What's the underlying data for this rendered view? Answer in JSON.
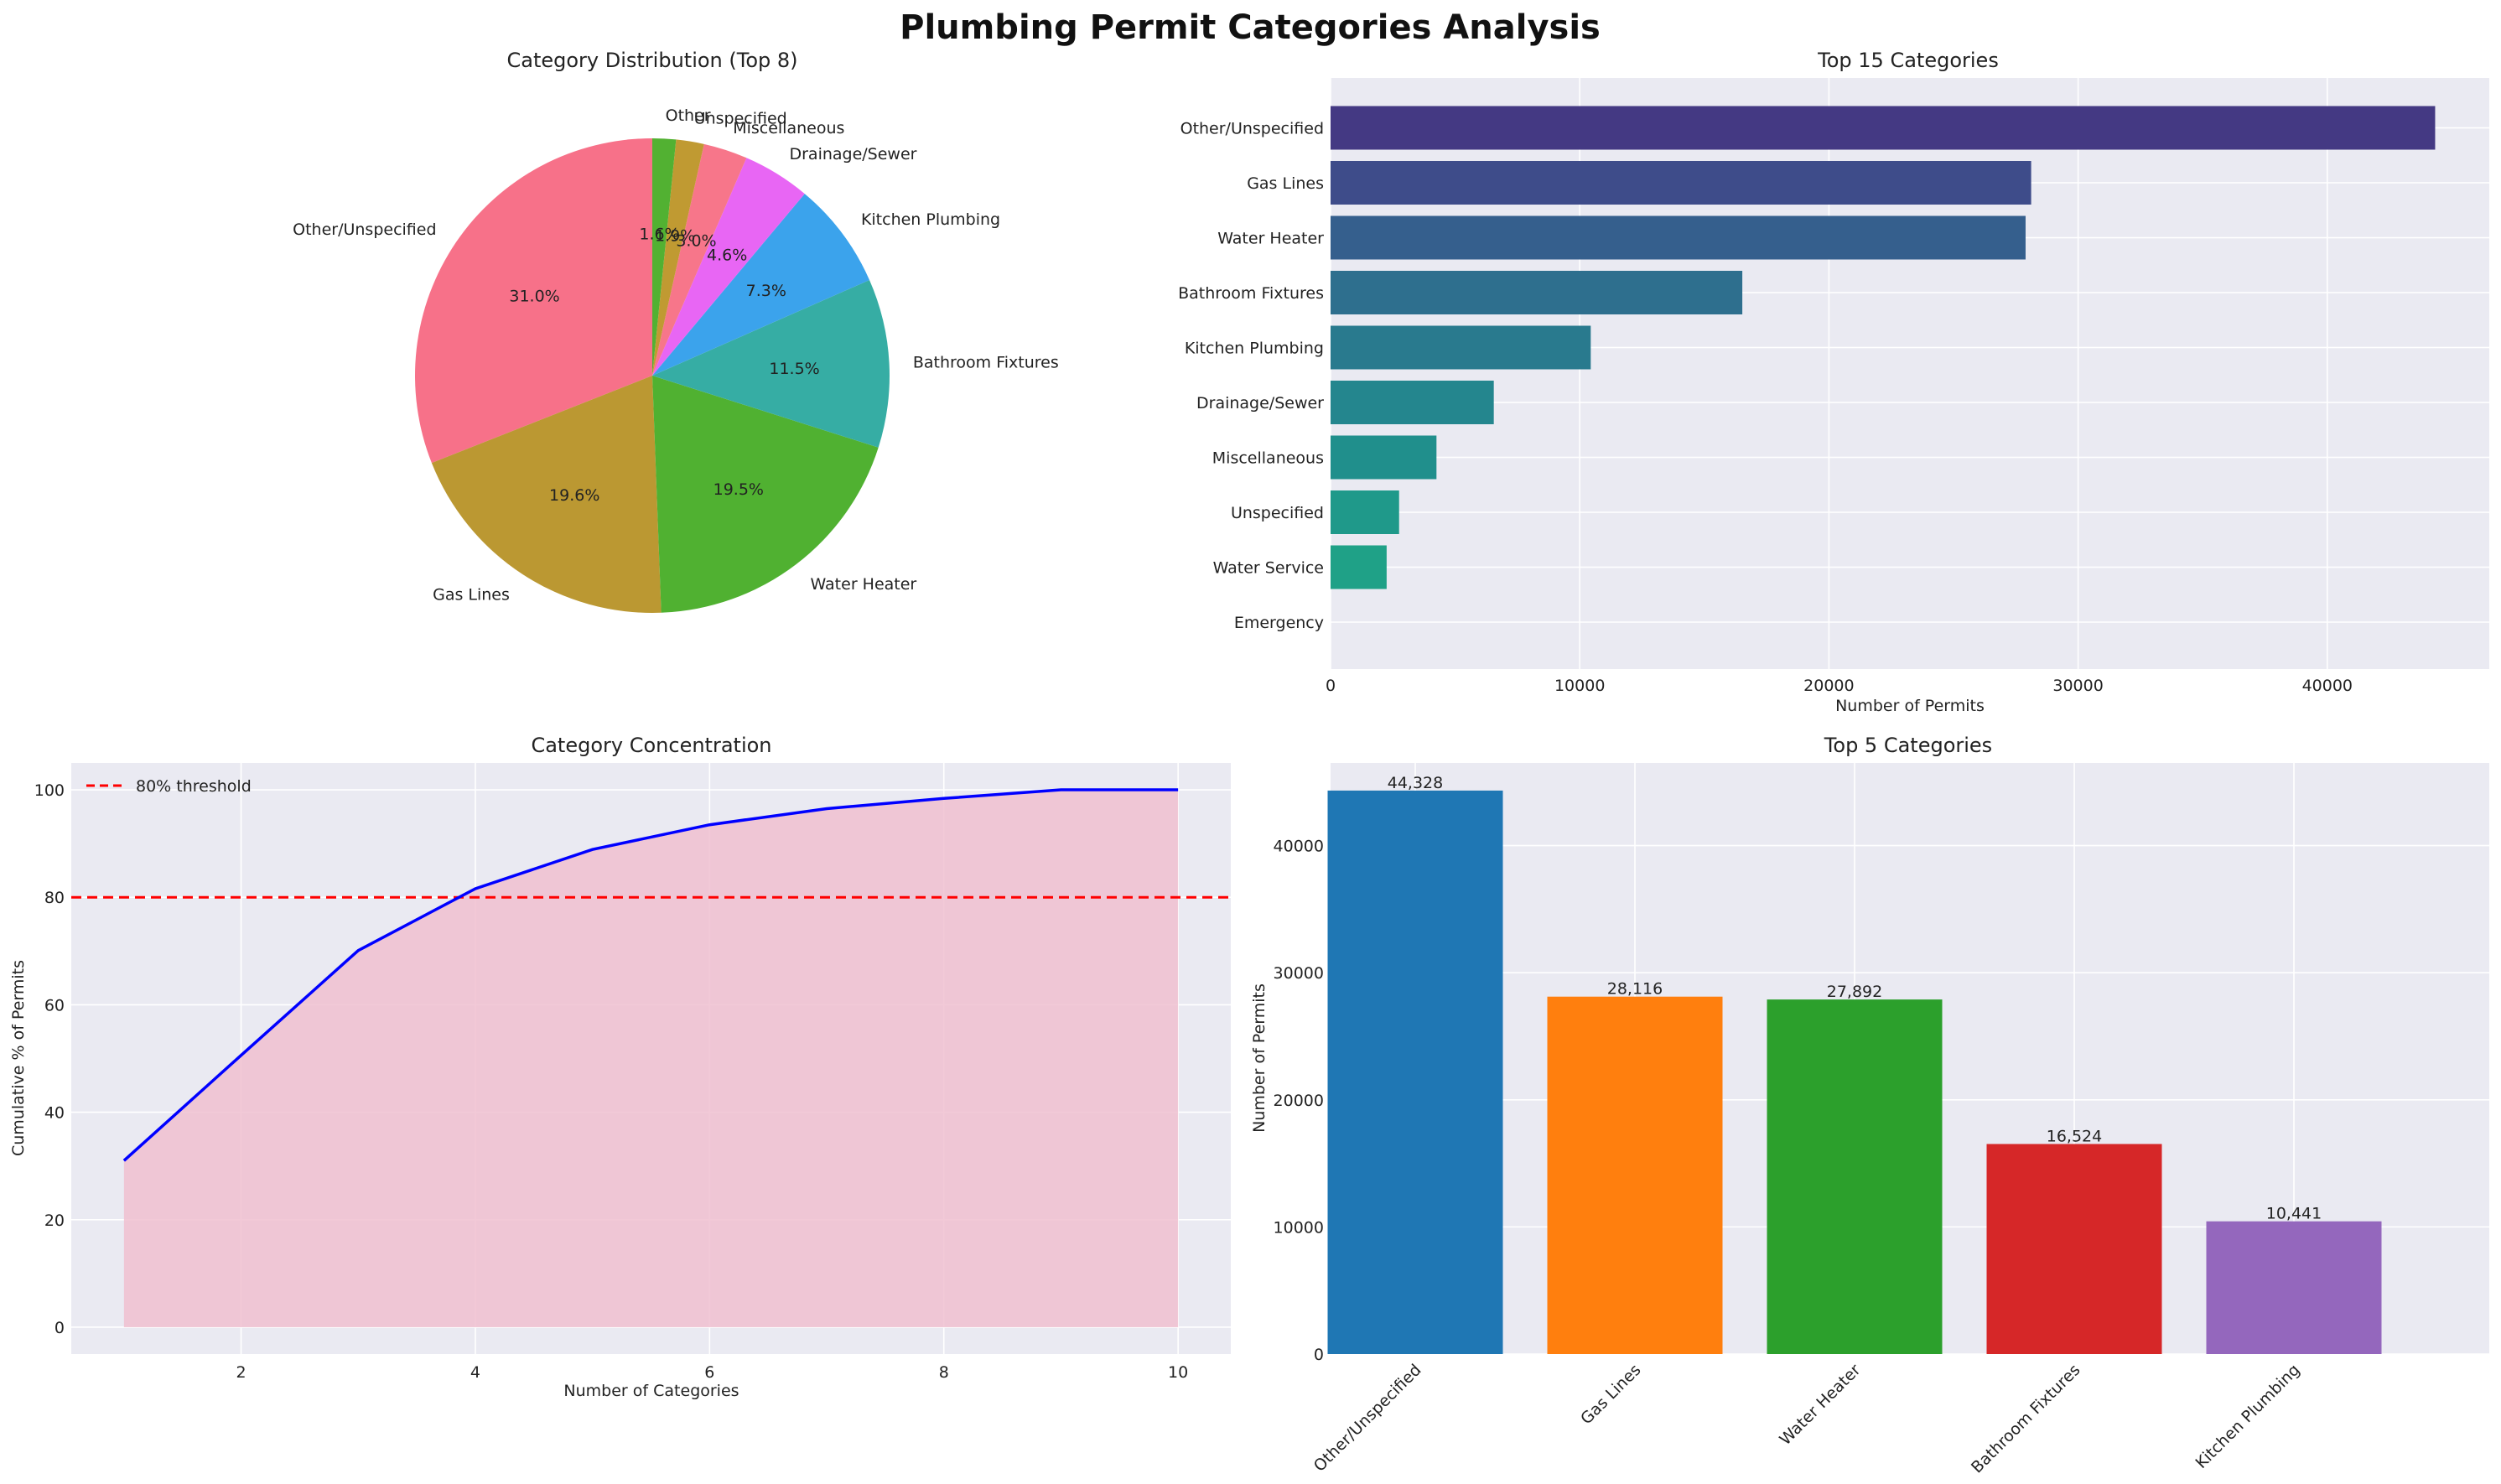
{
  "figure": {
    "title": "Plumbing Permit Categories Analysis"
  },
  "chart_data": [
    {
      "type": "pie",
      "title": "Category Distribution (Top 8)",
      "labels": [
        "Other/Unspecified",
        "Gas Lines",
        "Water Heater",
        "Bathroom Fixtures",
        "Kitchen Plumbing",
        "Drainage/Sewer",
        "Miscellaneous",
        "Unspecified",
        "Other"
      ],
      "pct_labels": [
        "31.0%",
        "19.6%",
        "19.5%",
        "11.5%",
        "7.3%",
        "4.6%",
        "3.0%",
        "1.9%",
        "1.6%"
      ],
      "values": [
        31.0,
        19.6,
        19.5,
        11.5,
        7.3,
        4.6,
        3.0,
        1.9,
        1.6
      ],
      "colors": [
        "#f77189",
        "#bb9832",
        "#50b131",
        "#36ada4",
        "#3ba3ec",
        "#e866f4",
        "#f7768a",
        "#c09a32",
        "#52b132"
      ],
      "start_angle": 90,
      "direction": "counterclockwise"
    },
    {
      "type": "bar",
      "orientation": "horizontal",
      "title": "Top 15 Categories",
      "xlabel": "Number of Permits",
      "ylabel": "",
      "categories": [
        "Other/Unspecified",
        "Gas Lines",
        "Water Heater",
        "Bathroom Fixtures",
        "Kitchen Plumbing",
        "Drainage/Sewer",
        "Miscellaneous",
        "Unspecified",
        "Water Service",
        "Emergency"
      ],
      "values": [
        44328,
        28116,
        27892,
        16524,
        10441,
        6550,
        4250,
        2750,
        2250,
        0
      ],
      "colors": [
        "#443983",
        "#3e4c8a",
        "#355f8d",
        "#2e6f8e",
        "#297a8e",
        "#24868e",
        "#208f8c",
        "#1f998a",
        "#1fa187",
        "#26ad81"
      ],
      "xlim": [
        0,
        46500
      ],
      "xticks": [
        0,
        10000,
        20000,
        30000,
        40000
      ],
      "grid": true
    },
    {
      "type": "area",
      "title": "Category Concentration",
      "xlabel": "Number of Categories",
      "ylabel": "Cumulative % of Permits",
      "x": [
        1,
        2,
        3,
        4,
        5,
        6,
        7,
        8,
        9,
        10
      ],
      "y": [
        31.0,
        50.6,
        70.1,
        81.6,
        88.9,
        93.5,
        96.5,
        98.4,
        100.0,
        100.0
      ],
      "line_color": "#0000ff",
      "fill_color": "#f0bfd0",
      "threshold": {
        "value": 80,
        "label": "80% threshold",
        "color": "#ff0000"
      },
      "legend_position": "top-left",
      "xlim": [
        0.55,
        10.45
      ],
      "ylim": [
        -5,
        105
      ],
      "xticks": [
        2,
        4,
        6,
        8,
        10
      ],
      "yticks": [
        0,
        20,
        40,
        60,
        80,
        100
      ],
      "grid": true
    },
    {
      "type": "bar",
      "title": "Top 5 Categories",
      "ylabel": "Number of Permits",
      "xlabel": "",
      "categories": [
        "Other/Unspecified",
        "Gas Lines",
        "Water Heater",
        "Bathroom Fixtures",
        "Kitchen Plumbing"
      ],
      "values": [
        44328,
        28116,
        27892,
        16524,
        10441
      ],
      "value_labels": [
        "44,328",
        "28,116",
        "27,892",
        "16,524",
        "10,441"
      ],
      "colors": [
        "#1f77b4",
        "#ff7f0e",
        "#2ca02c",
        "#d62728",
        "#9467bd"
      ],
      "ylim": [
        0,
        46500
      ],
      "yticks": [
        0,
        10000,
        20000,
        30000,
        40000
      ],
      "grid": true
    }
  ]
}
